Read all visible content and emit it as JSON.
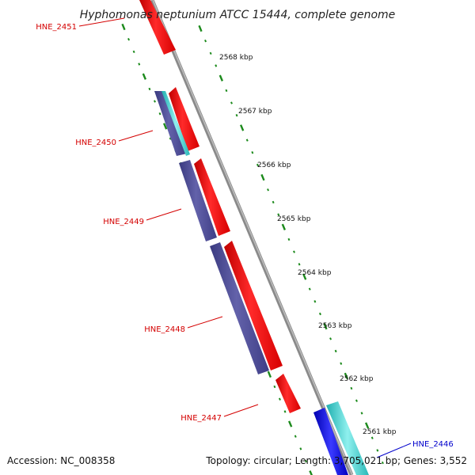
{
  "title": "Hyphomonas neptunium ATCC 15444, complete genome",
  "footer": {
    "accession": "Accession: NC_008358",
    "summary": "Topology: circular; Length: 3,705,021 bp; Genes: 3,552"
  },
  "colors": {
    "forward_gene": "#ff0000",
    "reverse_gene": "#4b4a96",
    "cds_cyan": "#3fd0d0",
    "cds_blue": "#1010e0",
    "backbone": "#8a8a8a",
    "tick": "#1c8a1c",
    "label_red": "#d40000",
    "label_blue": "#0000cc"
  },
  "gene_labels": [
    {
      "name": "HNE_2451",
      "color": "label_red"
    },
    {
      "name": "HNE_2450",
      "color": "label_red"
    },
    {
      "name": "HNE_2449",
      "color": "label_red"
    },
    {
      "name": "HNE_2448",
      "color": "label_red"
    },
    {
      "name": "HNE_2447",
      "color": "label_red"
    },
    {
      "name": "HNE_2446",
      "color": "label_blue"
    }
  ],
  "kbp_labels": [
    "2568 kbp",
    "2567 kbp",
    "2566 kbp",
    "2565 kbp",
    "2564 kbp",
    "2563 kbp",
    "2562 kbp",
    "2561 kbp"
  ]
}
